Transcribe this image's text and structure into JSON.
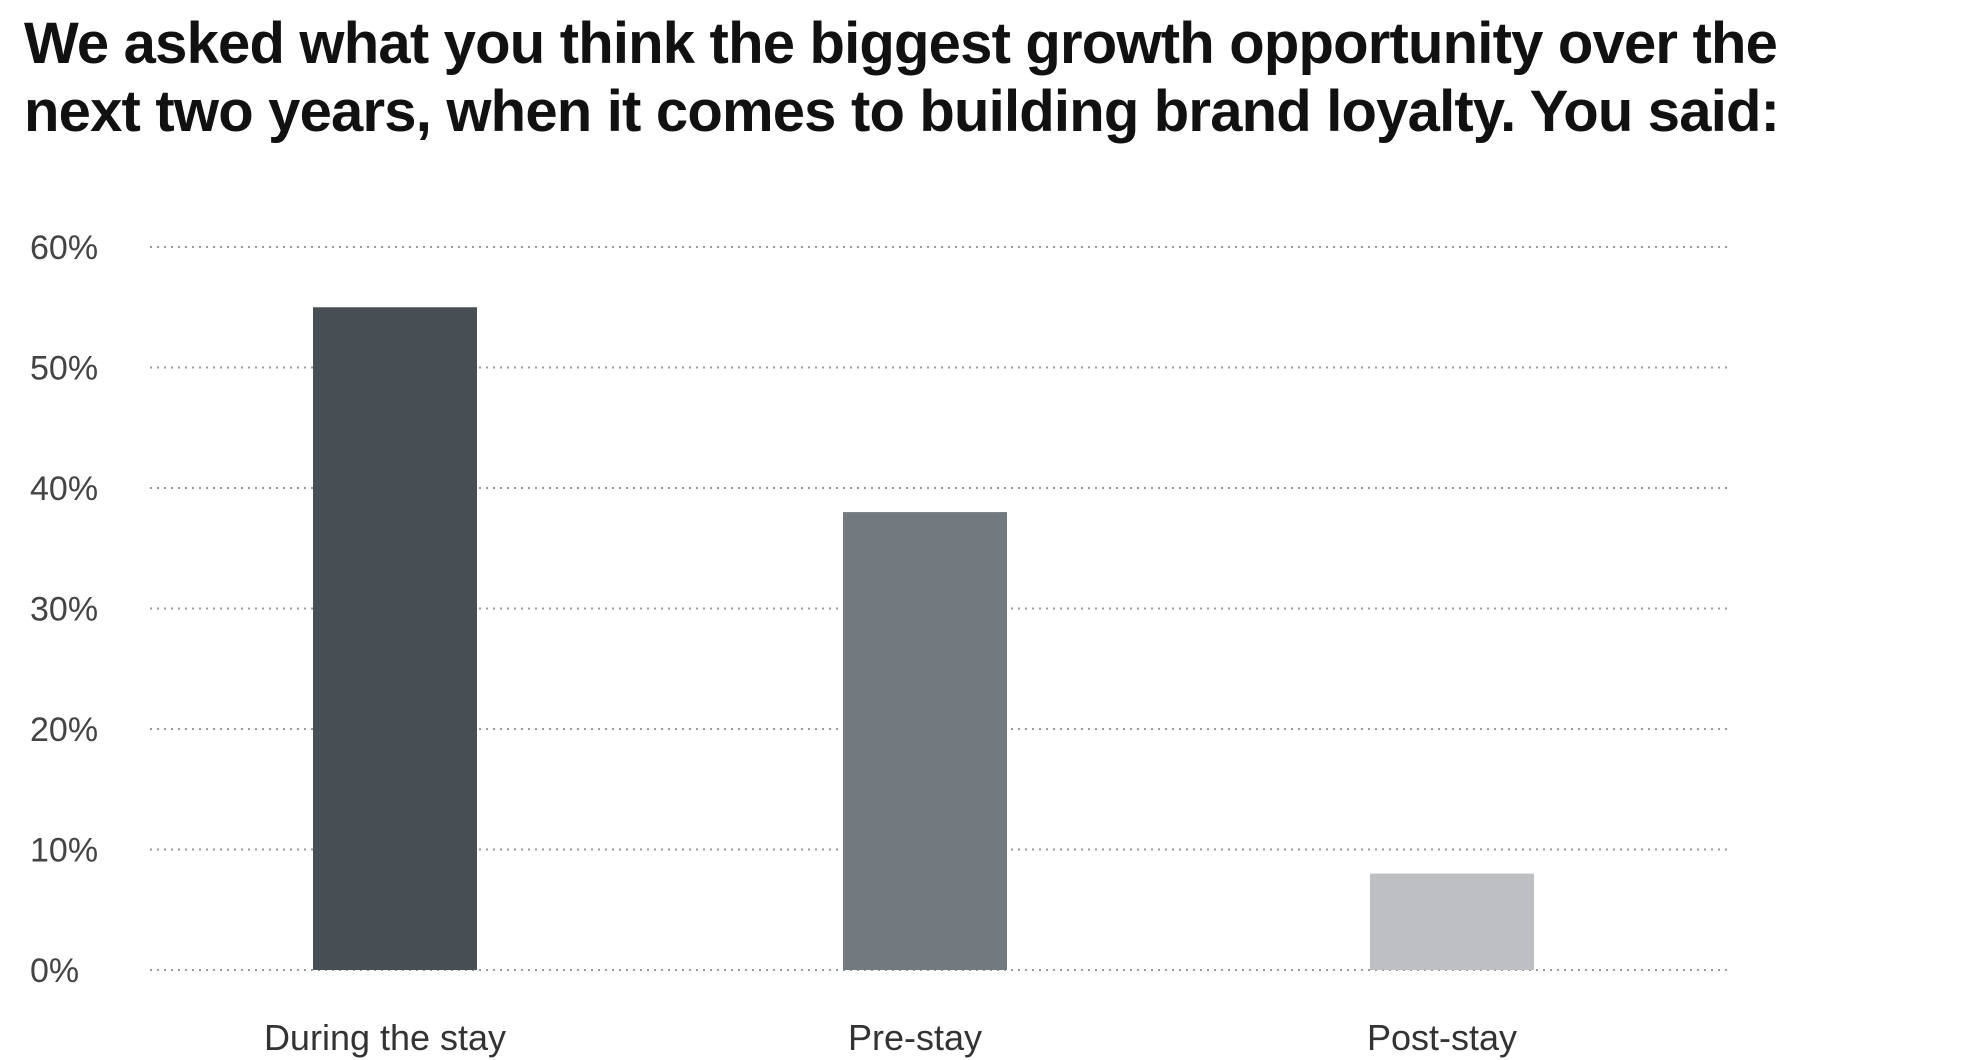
{
  "chart_data": {
    "type": "bar",
    "title_lines": [
      "We asked what you think the biggest growth opportunity over the",
      "next two years, when it comes to building brand loyalty. You said:"
    ],
    "categories": [
      "During the stay",
      "Pre-stay",
      "Post-stay"
    ],
    "values": [
      55,
      38,
      8
    ],
    "colors": [
      "#474f55",
      "#72797f",
      "#bdbfc2"
    ],
    "ylim": [
      0,
      60
    ],
    "yticks": [
      0,
      10,
      20,
      30,
      40,
      50,
      60
    ],
    "ytick_labels": [
      "0%",
      "10%",
      "20%",
      "30%",
      "40%",
      "50%",
      "60%"
    ],
    "grid": "dotted horizontal",
    "xlabel": "",
    "ylabel": ""
  }
}
